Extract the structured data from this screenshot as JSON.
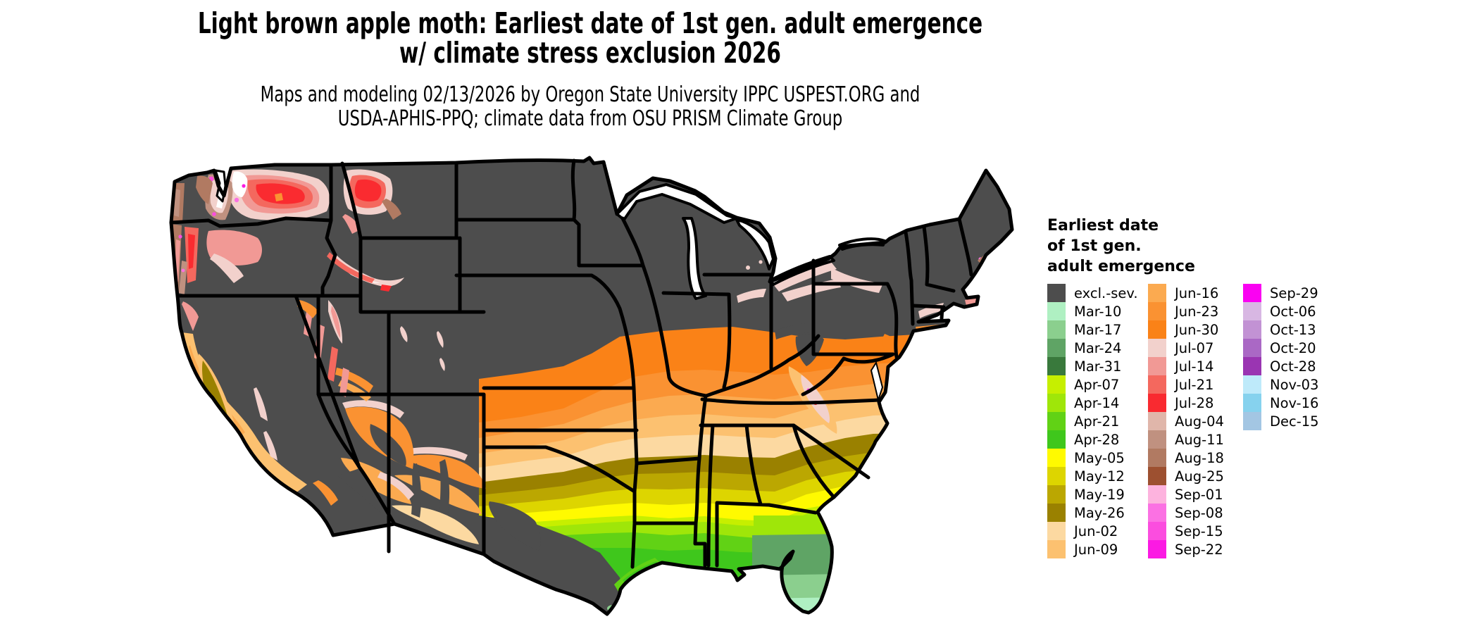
{
  "header": {
    "title_line1": "Light brown apple moth: Earliest date of 1st gen. adult emergence",
    "title_line2": "w/ climate stress exclusion 2026",
    "subtitle_line1": "Maps and modeling 02/13/2026 by Oregon State University IPPC USPEST.ORG and",
    "subtitle_line2": "USDA-APHIS-PPQ; climate data from OSU PRISM Climate Group"
  },
  "legend": {
    "title_lines": [
      "Earliest date",
      "of 1st gen.",
      "adult emergence"
    ],
    "columns": [
      [
        {
          "label": "excl.-sev.",
          "color": "#4d4d4d"
        },
        {
          "label": "Mar-10",
          "color": "#aff0c2"
        },
        {
          "label": "Mar-17",
          "color": "#8bcf8e"
        },
        {
          "label": "Mar-24",
          "color": "#5fa465"
        },
        {
          "label": "Mar-31",
          "color": "#39793c"
        },
        {
          "label": "Apr-07",
          "color": "#c6ef00"
        },
        {
          "label": "Apr-14",
          "color": "#9fe609"
        },
        {
          "label": "Apr-21",
          "color": "#61d215"
        },
        {
          "label": "Apr-28",
          "color": "#3fc71c"
        },
        {
          "label": "May-05",
          "color": "#fffa00"
        },
        {
          "label": "May-12",
          "color": "#ddd500"
        },
        {
          "label": "May-19",
          "color": "#bba701"
        },
        {
          "label": "May-26",
          "color": "#9a8100"
        },
        {
          "label": "Jun-02",
          "color": "#fcd9a1"
        },
        {
          "label": "Jun-09",
          "color": "#fcc170"
        }
      ],
      [
        {
          "label": "Jun-16",
          "color": "#fbaa50"
        },
        {
          "label": "Jun-23",
          "color": "#fa9232"
        },
        {
          "label": "Jun-30",
          "color": "#fa8217"
        },
        {
          "label": "Jul-07",
          "color": "#f2d1cc"
        },
        {
          "label": "Jul-14",
          "color": "#f19995"
        },
        {
          "label": "Jul-21",
          "color": "#f4685e"
        },
        {
          "label": "Jul-28",
          "color": "#f92a30"
        },
        {
          "label": "Aug-04",
          "color": "#e0b6aa"
        },
        {
          "label": "Aug-11",
          "color": "#c09180"
        },
        {
          "label": "Aug-18",
          "color": "#b17a62"
        },
        {
          "label": "Aug-25",
          "color": "#9d5030"
        },
        {
          "label": "Sep-01",
          "color": "#fdb3de"
        },
        {
          "label": "Sep-08",
          "color": "#fb71e3"
        },
        {
          "label": "Sep-15",
          "color": "#fb4ddf"
        },
        {
          "label": "Sep-22",
          "color": "#fb1ae3"
        }
      ],
      [
        {
          "label": "Sep-29",
          "color": "#fa02f2"
        },
        {
          "label": "Oct-06",
          "color": "#d8b7e3"
        },
        {
          "label": "Oct-13",
          "color": "#c292d4"
        },
        {
          "label": "Oct-20",
          "color": "#aa68c5"
        },
        {
          "label": "Oct-28",
          "color": "#9a35b2"
        },
        {
          "label": "Nov-03",
          "color": "#beeafa"
        },
        {
          "label": "Nov-16",
          "color": "#86d2ee"
        },
        {
          "label": "Dec-15",
          "color": "#a3c6e3"
        }
      ]
    ]
  },
  "map": {
    "excluded_severe_color": "#4d4d4d",
    "background_color": "#ffffff",
    "border_color": "#000000"
  }
}
